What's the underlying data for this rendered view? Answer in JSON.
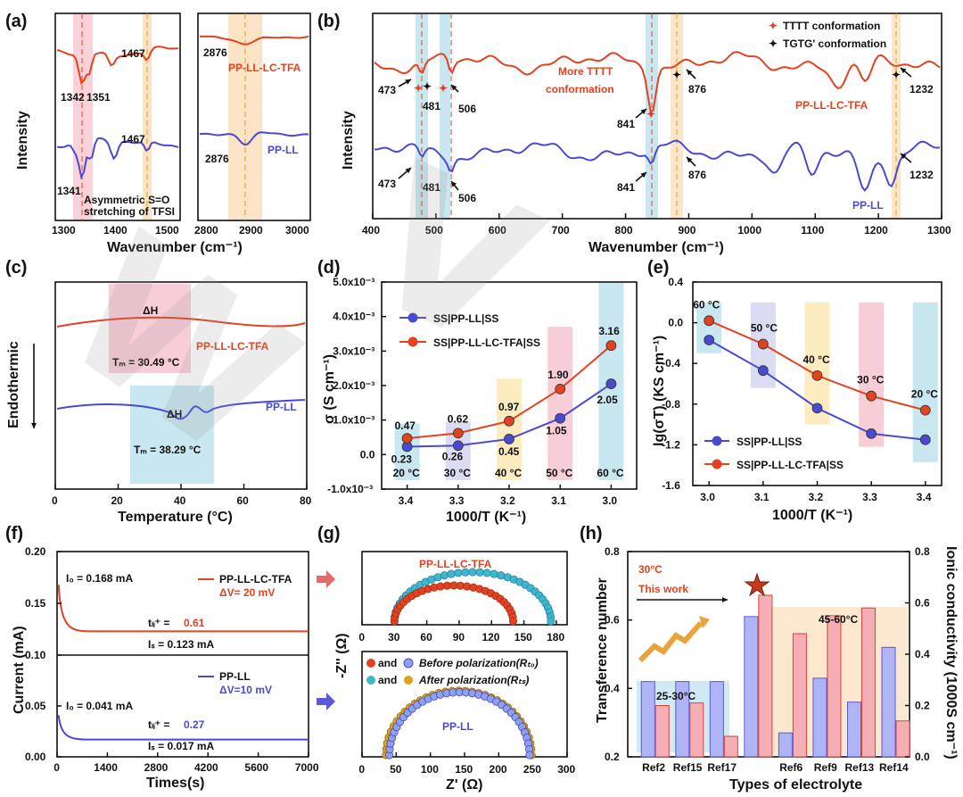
{
  "colors": {
    "red": "#e2421f",
    "blue": "#4a4ad0",
    "blue_light": "#8ea0f0",
    "teal": "#3fb6cf",
    "gold": "#e0a21a",
    "band_pink": "#f7c6cf",
    "band_orange": "#fbe0bf",
    "band_teal": "#bfe3ee",
    "band_purple": "#d5d5f0",
    "band_yellow": "#fbe9b5"
  },
  "panel_a": {
    "label": "(a)",
    "left": {
      "xlabel_ticks": [
        "1300",
        "1400",
        "1500"
      ],
      "annotations": {
        "r1467": "1467",
        "r1342": "1342",
        "r1351": "1351",
        "b1467": "1467",
        "b1341": "1341",
        "asym1": "Asymmetric S=O",
        "asym2": "stretching of TFSI"
      }
    },
    "right": {
      "xlabel_ticks": [
        "2800",
        "2900",
        "3000"
      ],
      "annotations": {
        "r2876": "2876",
        "b2876": "2876"
      },
      "sample_red": "PP-LL-LC-TFA",
      "sample_blue": "PP-LL"
    },
    "ylabel": "Intensity",
    "xlabel": "Wavenumber (cm⁻¹)"
  },
  "panel_b": {
    "label": "(b)",
    "ylabel": "Intensity",
    "xlabel": "Wavenumber (cm⁻¹)",
    "x_ticks": [
      "400",
      "500",
      "600",
      "700",
      "800",
      "900",
      "1000",
      "1100",
      "1200",
      "1300"
    ],
    "legend": {
      "tttt": "TTTT conformation",
      "tgtg": "TGTG' conformation"
    },
    "more1": "More TTTT",
    "more2": "conformation",
    "sample_red": "PP-LL-LC-TFA",
    "sample_blue": "PP-LL",
    "peaks_red": {
      "p473": "473",
      "p481": "481",
      "p506": "506",
      "p841": "841",
      "p876": "876",
      "p1232": "1232"
    },
    "peaks_blue": {
      "p473": "473",
      "p481": "481",
      "p506": "506",
      "p841": "841",
      "p876": "876",
      "p1232": "1232"
    }
  },
  "panel_c": {
    "label": "(c)",
    "ylabel": "Endothermic",
    "xlabel": "Temperature (°C)",
    "x_ticks": [
      "0",
      "20",
      "40",
      "60",
      "80"
    ],
    "dh": "ΔH",
    "sample_red": "PP-LL-LC-TFA",
    "sample_blue": "PP-LL",
    "tm_red": "Tₘ = 30.49 °C",
    "tm_blue": "Tₘ = 38.29 °C"
  },
  "chart_data": [
    {
      "id": "d",
      "type": "line",
      "title": "(d)",
      "xlabel": "1000/T (K⁻¹)",
      "ylabel": "σ (S cm⁻¹)",
      "x": [
        3.4,
        3.3,
        3.2,
        3.1,
        3.0
      ],
      "x_ticks": [
        "3.4",
        "3.3",
        "3.2",
        "3.1",
        "3.0"
      ],
      "y_ticks": [
        "-1.0x10⁻³",
        "0.0",
        "1.0x10⁻³",
        "2.0x10⁻³",
        "3.0x10⁻³",
        "4.0x10⁻³",
        "5.0x10⁻³"
      ],
      "xlim": [
        3.45,
        2.95
      ],
      "ylim": [
        -1.0,
        5.0
      ],
      "temps": [
        "20 °C",
        "30 °C",
        "40 °C",
        "50 °C",
        "60 °C"
      ],
      "series": [
        {
          "name": "SS|PP-LL|SS",
          "values": [
            0.23,
            0.26,
            0.45,
            1.05,
            2.05
          ],
          "labels": [
            "0.23",
            "0.26",
            "0.45",
            "1.05",
            "2.05"
          ]
        },
        {
          "name": "SS|PP-LL-LC-TFA|SS",
          "values": [
            0.47,
            0.62,
            0.97,
            1.9,
            3.16
          ],
          "labels": [
            "0.47",
            "0.62",
            "0.97",
            "1.90",
            "3.16"
          ]
        }
      ]
    },
    {
      "id": "e",
      "type": "line",
      "title": "(e)",
      "xlabel": "1000/T (K⁻¹)",
      "ylabel": "lg(σT) (KS cm⁻¹)",
      "x": [
        3.0,
        3.1,
        3.2,
        3.3,
        3.4
      ],
      "x_ticks": [
        "3.0",
        "3.1",
        "3.2",
        "3.3",
        "3.4"
      ],
      "y_ticks": [
        "-1.6",
        "-1.2",
        "-0.8",
        "-0.4",
        "0.0",
        "0.4"
      ],
      "xlim": [
        2.97,
        3.43
      ],
      "ylim": [
        -1.6,
        0.4
      ],
      "temps": [
        "60 °C",
        "50 °C",
        "40 °C",
        "30 °C",
        "20 °C"
      ],
      "series": [
        {
          "name": "SS|PP-LL|SS",
          "values": [
            -0.17,
            -0.47,
            -0.84,
            -1.09,
            -1.15
          ]
        },
        {
          "name": "SS|PP-LL-LC-TFA|SS",
          "values": [
            0.02,
            -0.21,
            -0.52,
            -0.72,
            -0.86
          ]
        }
      ]
    },
    {
      "id": "f",
      "type": "line",
      "title": "(f)",
      "xlabel": "Times(s)",
      "ylabel": "Current (mA)",
      "x_ticks": [
        "0",
        "1400",
        "2800",
        "4200",
        "5600",
        "7000"
      ],
      "xlim": [
        0,
        7000
      ],
      "top": {
        "y_ticks": [
          "0.10",
          "0.15",
          "0.20"
        ],
        "ylim": [
          0.1,
          0.2
        ],
        "i0": "I₀ = 0.168 mA",
        "is": "Iₛ = 0.123 mA",
        "t": "tₗᵢ⁺ = ",
        "t_val": "0.61",
        "name": "PP-LL-LC-TFA",
        "dv": "ΔV= 20 mV",
        "i0_value": 0.168,
        "is_value": 0.123
      },
      "bottom": {
        "y_ticks": [
          "0.00",
          "0.05"
        ],
        "ylim": [
          0.0,
          0.1
        ],
        "i0": "I₀ = 0.041 mA",
        "is": "Iₛ = 0.017 mA",
        "t": "tₗᵢ⁺ = ",
        "t_val": "0.27",
        "name": "PP-LL",
        "dv": "ΔV=10 mV",
        "i0_value": 0.041,
        "is_value": 0.017
      }
    },
    {
      "id": "g",
      "type": "scatter",
      "title": "(g)",
      "xlabel": "Z' (Ω)",
      "ylabel": "-Z'' (Ω)",
      "top": {
        "name": "PP-LL-LC-TFA",
        "x_ticks": [
          "0",
          "30",
          "60",
          "90",
          "120",
          "150",
          "180"
        ],
        "xlim": [
          0,
          190
        ],
        "before": {
          "start": 30,
          "end": 140,
          "peak": 40
        },
        "after": {
          "start": 30,
          "end": 175,
          "peak": 55
        }
      },
      "bottom": {
        "name": "PP-LL",
        "x_ticks": [
          "0",
          "50",
          "100",
          "150",
          "200",
          "250",
          "300"
        ],
        "xlim": [
          0,
          300
        ],
        "before": {
          "start": 40,
          "end": 245,
          "peak": 80
        },
        "after": {
          "start": 35,
          "end": 248,
          "peak": 82
        }
      },
      "legend": {
        "and1": "and",
        "before": "Before polarization(Rₜ₀)",
        "and2": "and",
        "after": "After   polarization(Rₜₛ)"
      }
    },
    {
      "id": "h",
      "type": "bar",
      "title": "(h)",
      "xlabel": "Types of electrolyte",
      "ylabel": "Transference number",
      "y2label": "Ionic conductivity (1000S cm⁻¹)",
      "categories": [
        "Ref2",
        "Ref15",
        "Ref17",
        "",
        "Ref6",
        "Ref9",
        "Ref13",
        "Ref14"
      ],
      "y_ticks": [
        "0.2",
        "0.4",
        "0.6",
        "0.8"
      ],
      "y2_ticks": [
        "0.0",
        "0.2",
        "0.4",
        "0.6",
        "0.8"
      ],
      "ylim": [
        0.2,
        0.8
      ],
      "y2lim": [
        0.0,
        0.8
      ],
      "series": [
        {
          "name": "Transference number",
          "values": [
            0.42,
            0.42,
            0.42,
            0.61,
            0.27,
            0.43,
            0.36,
            0.52
          ]
        },
        {
          "name": "Ionic conductivity",
          "values": [
            0.2,
            0.21,
            0.08,
            0.63,
            0.48,
            0.55,
            0.58,
            0.14
          ]
        }
      ],
      "groups": {
        "g1": "25-30°C",
        "g2": "45-60°C"
      },
      "this_work_t": "30°C",
      "this_work": "This work"
    }
  ]
}
